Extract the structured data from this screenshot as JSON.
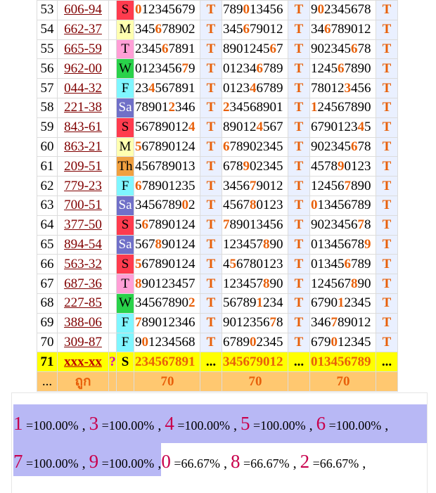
{
  "rows": [
    {
      "num": "53",
      "code": "606-94",
      "day": "S",
      "d1": "012345679",
      "h1": [
        0
      ],
      "d2": "789013456",
      "h2": [
        3
      ],
      "d3": "902345678",
      "h3": [
        1
      ]
    },
    {
      "num": "54",
      "code": "662-37",
      "day": "M",
      "d1": "345678902",
      "h1": [
        3
      ],
      "d2": "345679012",
      "h2": [
        3
      ],
      "d3": "346789012",
      "h3": [
        2
      ]
    },
    {
      "num": "55",
      "code": "665-59",
      "day": "T",
      "d1": "234567891",
      "h1": [
        4
      ],
      "d2": "890124567",
      "h2": [
        7
      ],
      "d3": "902345678",
      "h3": [
        6
      ]
    },
    {
      "num": "56",
      "code": "962-00",
      "day": "W",
      "d1": "012345679",
      "h1": [
        7
      ],
      "d2": "012346789",
      "h2": [
        5
      ],
      "d3": "124567890",
      "h3": [
        4
      ]
    },
    {
      "num": "57",
      "code": "044-32",
      "day": "F",
      "d1": "234567891",
      "h1": [
        2
      ],
      "d2": "012346789",
      "h2": [
        4
      ],
      "d3": "780123456",
      "h3": [
        5
      ]
    },
    {
      "num": "58",
      "code": "221-38",
      "day": "Sa",
      "d1": "789012346",
      "h1": [
        5
      ],
      "d2": "234568901",
      "h2": [
        0
      ],
      "d3": "124567890",
      "h3": [
        0
      ]
    },
    {
      "num": "59",
      "code": "843-61",
      "day": "S",
      "d1": "567890124",
      "h1": [
        8
      ],
      "d2": "890124567",
      "h2": [
        5
      ],
      "d3": "679012345",
      "h3": [
        7
      ]
    },
    {
      "num": "60",
      "code": "863-21",
      "day": "M",
      "d1": "567890124",
      "h1": [
        0
      ],
      "d2": "678902345",
      "h2": [
        0
      ],
      "d3": "902345678",
      "h3": [
        6
      ]
    },
    {
      "num": "61",
      "code": "209-51",
      "day": "Th",
      "d1": "456789013",
      "h1": [],
      "d2": "678902345",
      "h2": [
        3
      ],
      "d3": "457890123",
      "h3": [
        4
      ]
    },
    {
      "num": "62",
      "code": "779-23",
      "day": "F",
      "d1": "678901235",
      "h1": [
        0
      ],
      "d2": "345679012",
      "h2": [
        4
      ],
      "d3": "124567890",
      "h3": [
        5
      ]
    },
    {
      "num": "63",
      "code": "700-51",
      "day": "Sa",
      "d1": "345678902",
      "h1": [
        7
      ],
      "d2": "456780123",
      "h2": [
        4
      ],
      "d3": "013456789",
      "h3": [
        0
      ]
    },
    {
      "num": "64",
      "code": "377-50",
      "day": "S",
      "d1": "567890124",
      "h1": [
        1
      ],
      "d2": "789013456",
      "h2": [
        0
      ],
      "d3": "902345678",
      "h3": [
        7
      ]
    },
    {
      "num": "65",
      "code": "894-54",
      "day": "Sa",
      "d1": "567890124",
      "h1": [
        3
      ],
      "d2": "123457890",
      "h2": [
        6
      ],
      "d3": "013456789",
      "h3": [
        8
      ]
    },
    {
      "num": "66",
      "code": "563-32",
      "day": "S",
      "d1": "567890124",
      "h1": [
        0
      ],
      "d2": "456780123",
      "h2": [
        1
      ],
      "d3": "013456789",
      "h3": [
        5
      ]
    },
    {
      "num": "67",
      "code": "687-36",
      "day": "T",
      "d1": "890123457",
      "h1": [
        0
      ],
      "d2": "123457890",
      "h2": [
        6
      ],
      "d3": "124567890",
      "h3": [
        6
      ]
    },
    {
      "num": "68",
      "code": "227-85",
      "day": "W",
      "d1": "345678902",
      "h1": [
        8
      ],
      "d2": "567891234",
      "h2": [
        5
      ],
      "d3": "679012345",
      "h3": [
        4
      ]
    },
    {
      "num": "69",
      "code": "388-06",
      "day": "F",
      "d1": "789012346",
      "h1": [
        0
      ],
      "d2": "901235678",
      "h2": [
        7
      ],
      "d3": "346789012",
      "h3": [
        3
      ]
    },
    {
      "num": "70",
      "code": "309-87",
      "day": "F",
      "d1": "901234568",
      "h1": [
        1
      ],
      "d2": "678902345",
      "h2": [
        4
      ],
      "d3": "679012345",
      "h3": [
        3
      ]
    }
  ],
  "pending_row": {
    "num": "71",
    "code": "xxx-xx",
    "q": "?",
    "day": "S",
    "d1": "234567891",
    "d2": "345679012",
    "d3": "013456789",
    "dots": "..."
  },
  "footer_row": {
    "num": "...",
    "label": "ถูก",
    "c1": "70",
    "c2": "70",
    "c3": "70"
  },
  "t_label": "T",
  "stats_line1": [
    {
      "digit": "1",
      "pct": "=100.00%"
    },
    {
      "digit": "3",
      "pct": "=100.00%"
    },
    {
      "digit": "4",
      "pct": "=100.00%"
    },
    {
      "digit": "5",
      "pct": "=100.00%"
    },
    {
      "digit": "6",
      "pct": "=100.00%"
    }
  ],
  "stats_line2_hl": [
    {
      "digit": "7",
      "pct": "=100.00%"
    },
    {
      "digit": "9",
      "pct": "=100.00%"
    }
  ],
  "stats_line2": [
    {
      "digit": "0",
      "pct": "=66.67%"
    },
    {
      "digit": "8",
      "pct": "=66.67%"
    },
    {
      "digit": "2",
      "pct": "=66.67%"
    }
  ],
  "sep": ","
}
